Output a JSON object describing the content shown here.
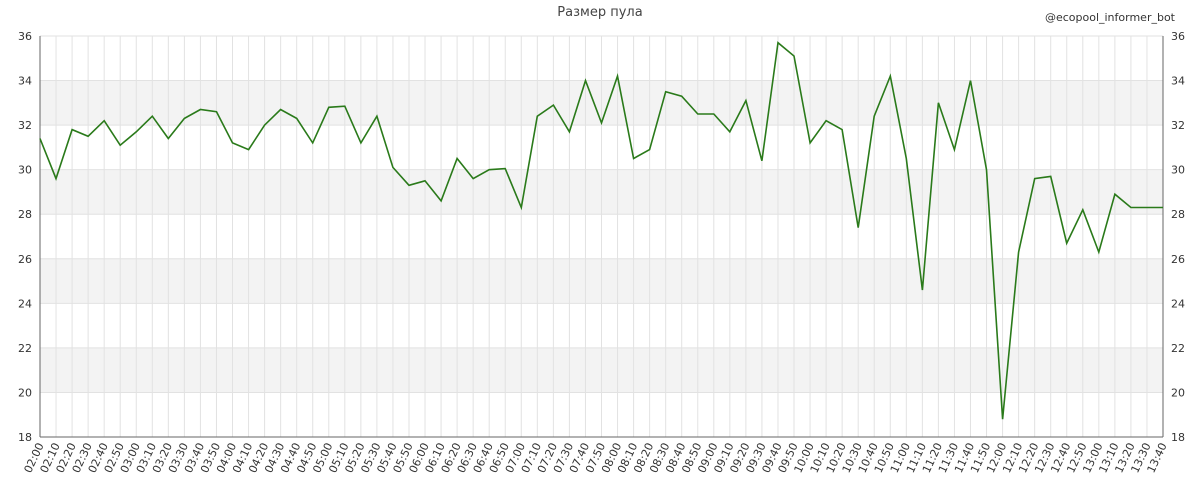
{
  "chart_data": {
    "type": "line",
    "title": "Размер пула",
    "annotation": "@ecopool_informer_bot",
    "categories": [
      "02:00",
      "02:10",
      "02:20",
      "02:30",
      "02:40",
      "02:50",
      "03:00",
      "03:10",
      "03:20",
      "03:30",
      "03:40",
      "03:50",
      "04:00",
      "04:10",
      "04:20",
      "04:30",
      "04:40",
      "04:50",
      "05:00",
      "05:10",
      "05:20",
      "05:30",
      "05:40",
      "05:50",
      "06:00",
      "06:10",
      "06:20",
      "06:30",
      "06:40",
      "06:50",
      "07:00",
      "07:10",
      "07:20",
      "07:30",
      "07:40",
      "07:50",
      "08:00",
      "08:10",
      "08:20",
      "08:30",
      "08:40",
      "08:50",
      "09:00",
      "09:10",
      "09:20",
      "09:30",
      "09:40",
      "09:50",
      "10:00",
      "10:10",
      "10:20",
      "10:30",
      "10:40",
      "10:50",
      "11:00",
      "11:10",
      "11:20",
      "11:30",
      "11:40",
      "11:50",
      "12:00",
      "12:10",
      "12:20",
      "12:30",
      "12:40",
      "12:50",
      "13:00",
      "13:10",
      "13:20",
      "13:30",
      "13:40"
    ],
    "series": [
      {
        "name": "Размер пула",
        "color": "#2a7a1a",
        "values": [
          31.4,
          29.6,
          31.8,
          31.5,
          32.2,
          31.1,
          31.7,
          32.4,
          31.4,
          32.3,
          32.7,
          32.6,
          31.2,
          30.9,
          32.0,
          32.7,
          32.3,
          31.2,
          32.8,
          32.85,
          31.2,
          32.4,
          30.1,
          29.3,
          29.5,
          28.6,
          30.5,
          29.6,
          30.0,
          30.05,
          28.3,
          32.4,
          32.9,
          31.7,
          34.0,
          32.1,
          34.2,
          30.5,
          30.9,
          33.5,
          33.3,
          32.5,
          32.5,
          31.7,
          33.1,
          30.4,
          35.7,
          35.1,
          31.2,
          32.2,
          31.8,
          27.4,
          32.4,
          34.2,
          30.5,
          24.6,
          33.0,
          30.9,
          34.0,
          30.0,
          18.8,
          26.3,
          29.6,
          29.7,
          26.7,
          28.2,
          26.3,
          28.9,
          28.3,
          28.3,
          28.3
        ]
      }
    ],
    "ylim": [
      18,
      36
    ],
    "yticks": [
      18,
      20,
      22,
      24,
      26,
      28,
      30,
      32,
      34,
      36
    ],
    "grid": true
  }
}
